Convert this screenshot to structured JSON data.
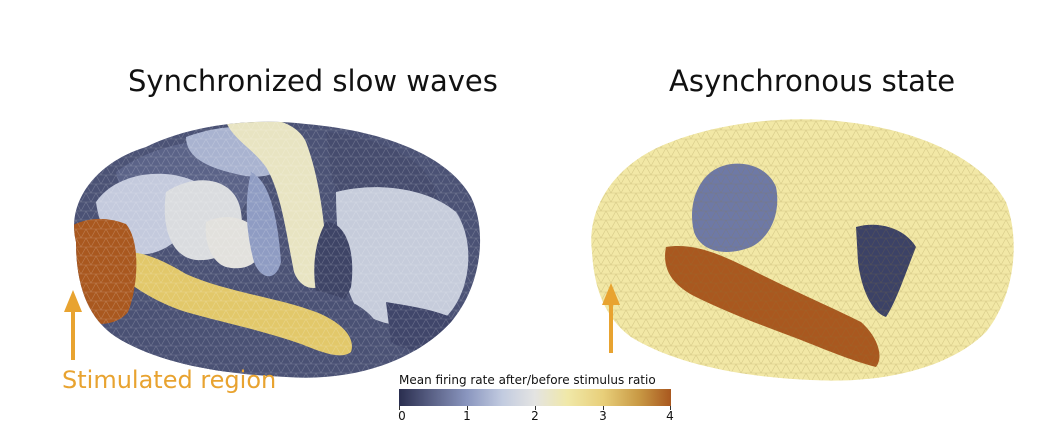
{
  "panels": {
    "left": {
      "title": "Synchronized slow waves"
    },
    "right": {
      "title": "Asynchronous state"
    }
  },
  "annotation": {
    "stimulated_label": "Stimulated region",
    "color": "#e8a330"
  },
  "colorbar": {
    "title": "Mean firing rate after/before stimulus ratio",
    "ticks": [
      "0",
      "1",
      "2",
      "3",
      "4"
    ],
    "range": [
      0,
      4
    ],
    "colormap": [
      "#2a2e4f",
      "#8a96bf",
      "#e4e4e2",
      "#e8cf7a",
      "#a9581f"
    ]
  }
}
